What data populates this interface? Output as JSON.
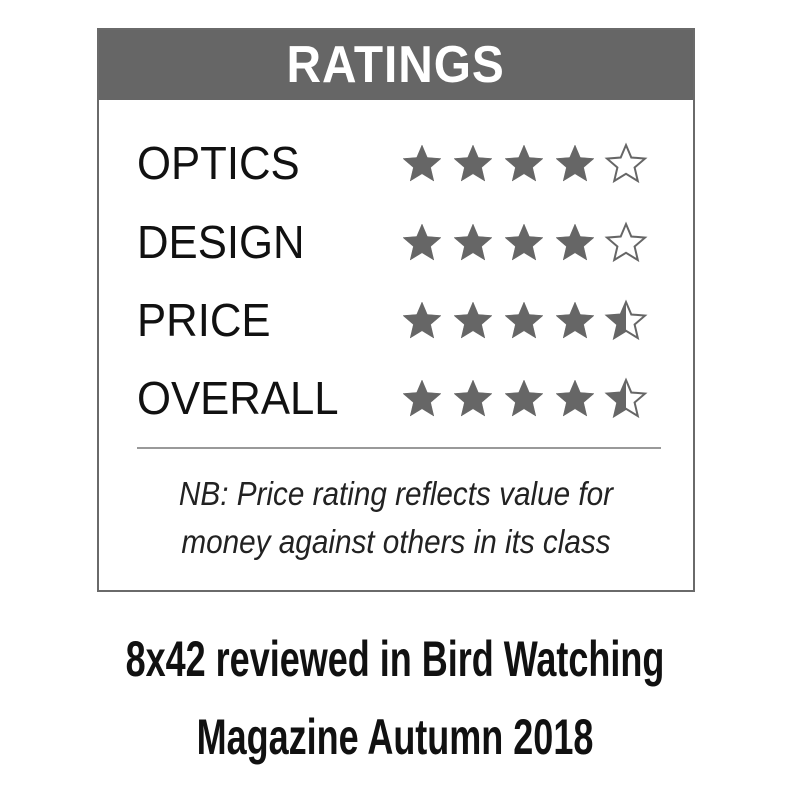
{
  "header": {
    "title": "RATINGS"
  },
  "ratings": [
    {
      "label": "OPTICS",
      "stars": 4,
      "max": 5
    },
    {
      "label": "DESIGN",
      "stars": 4,
      "max": 5
    },
    {
      "label": "PRICE",
      "stars": 4.5,
      "max": 5
    },
    {
      "label": "OVERALL",
      "stars": 4.5,
      "max": 5
    }
  ],
  "note": {
    "line1": "NB: Price rating reflects value for",
    "line2": "money against others in its class"
  },
  "caption": {
    "line1": "8x42 reviewed in Bird Watching",
    "line2": "Magazine Autumn 2018"
  },
  "colors": {
    "header_bg": "#666666",
    "star": "#666666",
    "border": "#6a6a6a"
  }
}
